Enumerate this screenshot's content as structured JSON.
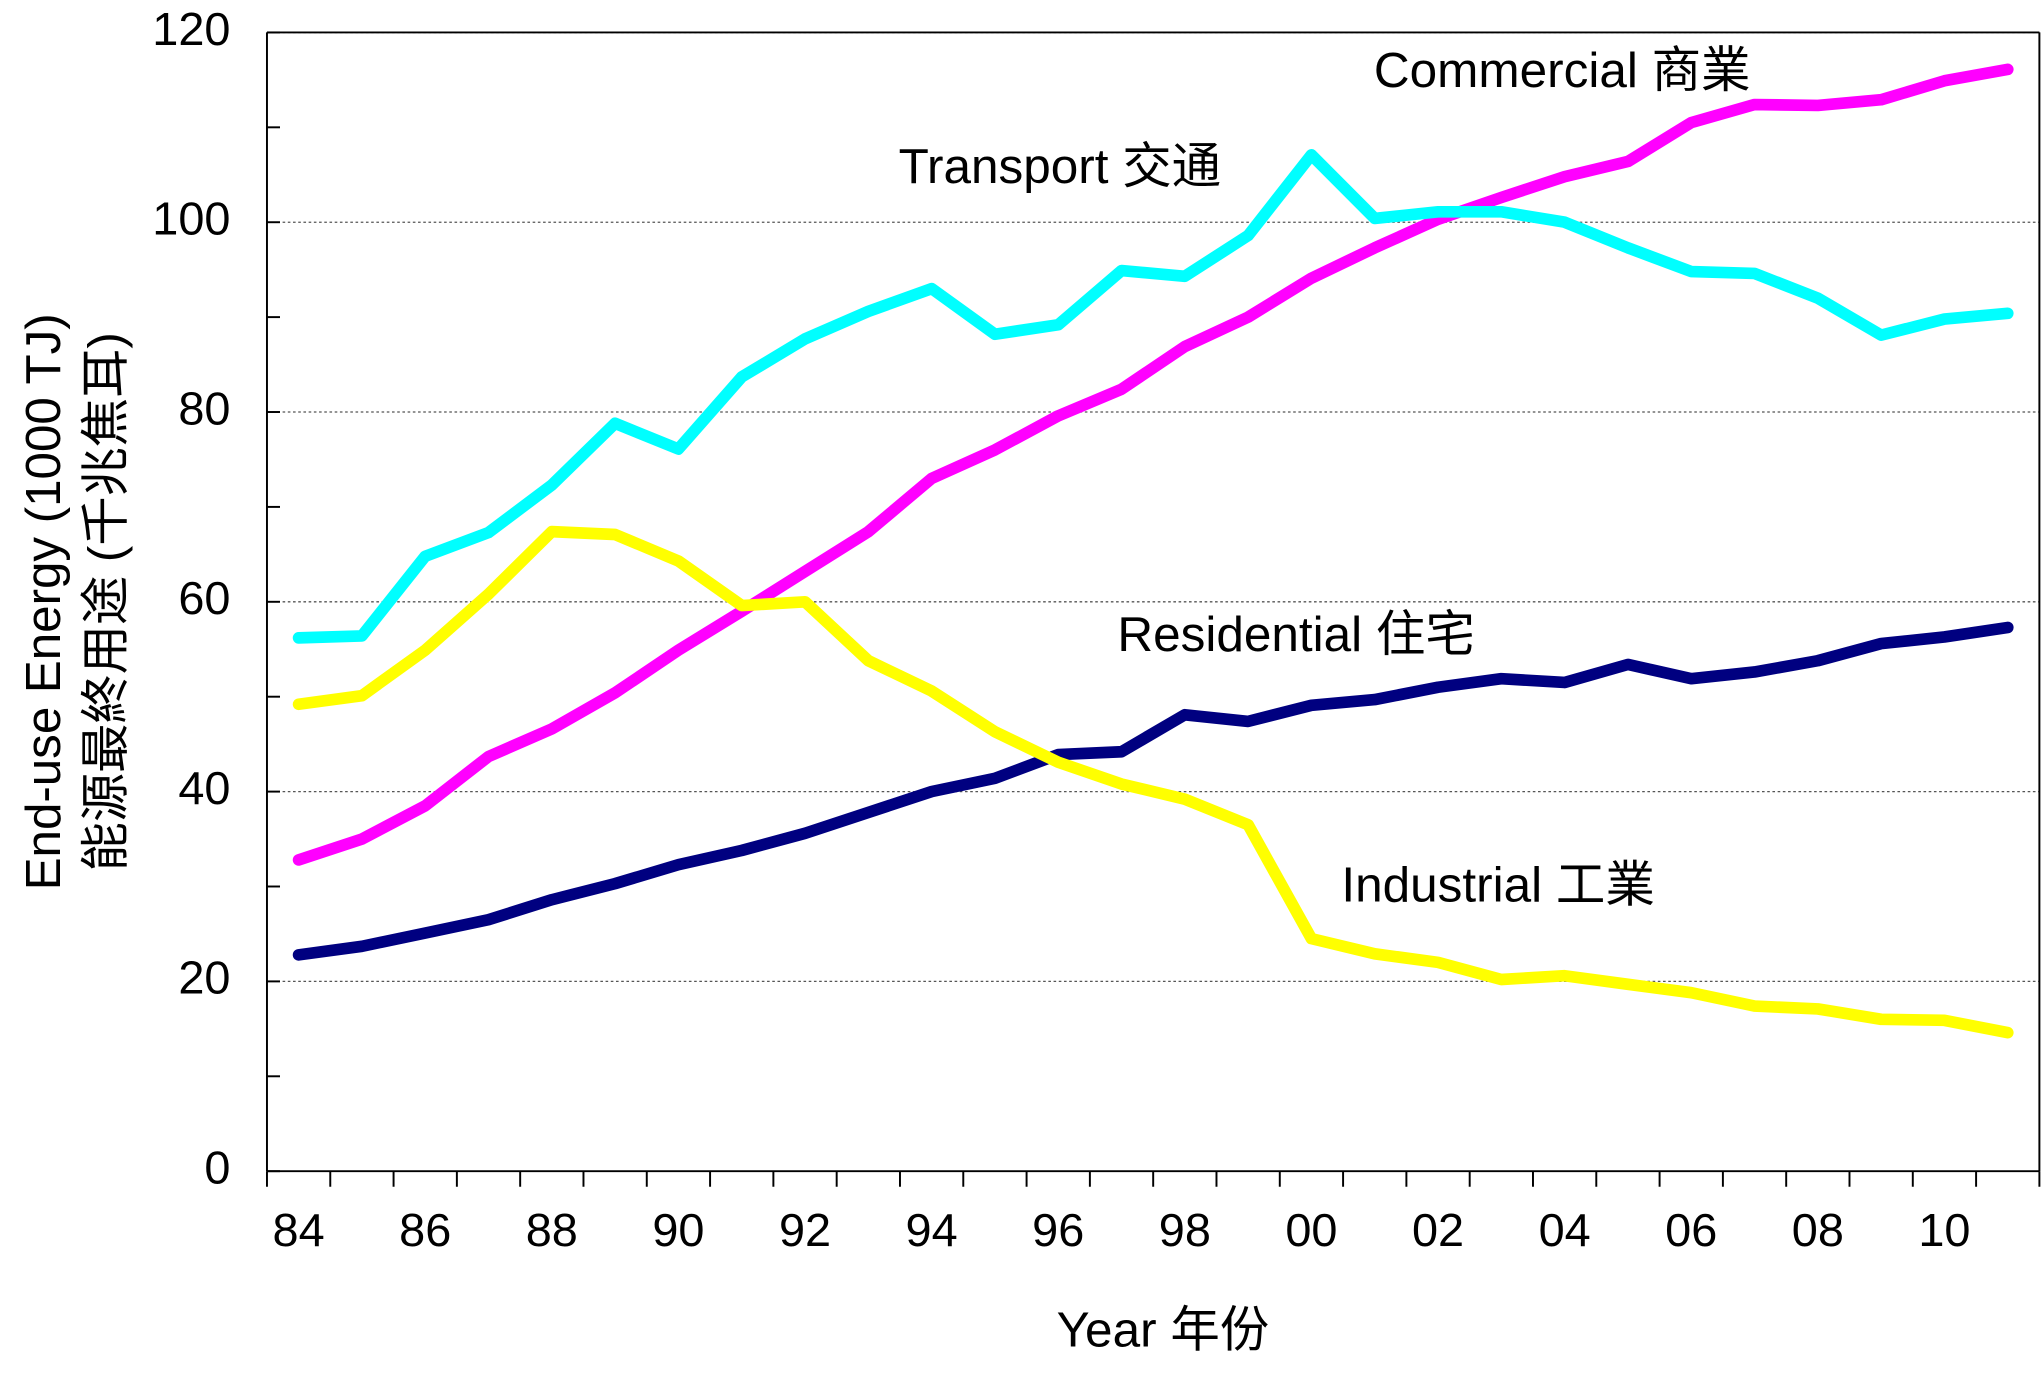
{
  "chart_data": {
    "type": "line",
    "x_label": "Year 年份",
    "y_label": [
      "End-use Energy (1000 TJ)",
      "能源最終用途 (千兆焦耳)"
    ],
    "categories": [
      "84",
      null,
      "86",
      null,
      "88",
      null,
      "90",
      null,
      "92",
      null,
      "94",
      null,
      "96",
      null,
      "98",
      null,
      "00",
      null,
      "02",
      null,
      "04",
      null,
      "06",
      null,
      "08",
      null,
      "10",
      null
    ],
    "series": [
      {
        "name": "Commercial 商業",
        "color": "#ff00ff",
        "values": [
          32.8,
          35.0,
          38.5,
          43.7,
          46.6,
          50.4,
          54.9,
          59.0,
          63.2,
          67.4,
          73.0,
          76.0,
          79.6,
          82.4,
          86.9,
          90.0,
          94.1,
          97.3,
          100.3,
          102.6,
          104.8,
          106.4,
          110.5,
          112.4,
          112.3,
          112.9,
          114.9,
          116.1
        ]
      },
      {
        "name": "Transport 交通",
        "color": "#00ffff",
        "values": [
          56.2,
          56.4,
          64.8,
          67.3,
          72.3,
          78.8,
          76.1,
          83.7,
          87.7,
          90.6,
          93.0,
          88.2,
          89.2,
          94.9,
          94.3,
          98.6,
          107.1,
          100.4,
          101.1,
          101.1,
          100.0,
          97.3,
          94.8,
          94.6,
          92.0,
          88.1,
          89.8,
          90.4
        ]
      },
      {
        "name": "Residential 住宅",
        "color": "#000080",
        "values": [
          22.8,
          23.7,
          25.1,
          26.5,
          28.6,
          30.3,
          32.3,
          33.8,
          35.6,
          37.8,
          40.0,
          41.4,
          43.9,
          44.2,
          48.1,
          47.4,
          49.1,
          49.7,
          51.0,
          51.9,
          51.5,
          53.4,
          51.9,
          52.6,
          53.8,
          55.6,
          56.3,
          57.3
        ]
      },
      {
        "name": "Industrial 工業",
        "color": "#ffff00",
        "values": [
          49.2,
          50.1,
          54.9,
          60.8,
          67.4,
          67.1,
          64.3,
          59.6,
          60.0,
          53.8,
          50.6,
          46.3,
          43.1,
          40.8,
          39.2,
          36.5,
          24.5,
          22.9,
          22.0,
          20.2,
          20.6,
          19.7,
          18.8,
          17.4,
          17.1,
          16.0,
          15.9,
          14.6
        ]
      }
    ],
    "ylim": [
      0,
      120
    ],
    "yticks": [
      0,
      20,
      40,
      60,
      80,
      100,
      120
    ],
    "yminorticks": [
      10,
      30,
      50,
      70,
      90,
      110
    ],
    "grid": true
  }
}
